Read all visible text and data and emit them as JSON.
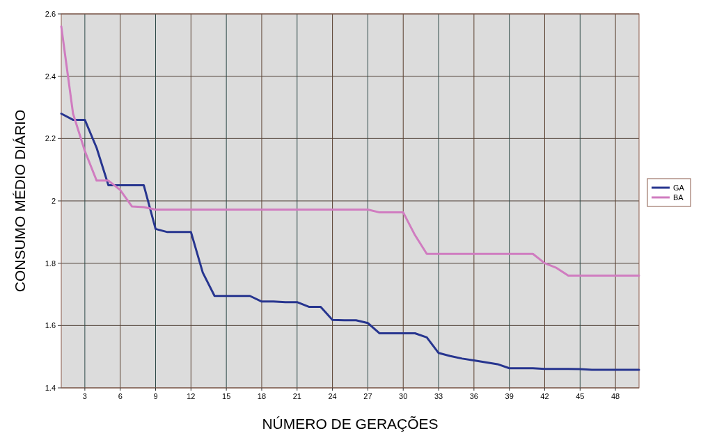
{
  "chart_data": {
    "type": "line",
    "xlabel": "NÚMERO DE GERAÇÕES",
    "ylabel": "CONSUMO MÉDIO DIÁRIO",
    "x": [
      1,
      2,
      3,
      4,
      5,
      6,
      7,
      8,
      9,
      10,
      11,
      12,
      13,
      14,
      15,
      16,
      17,
      18,
      19,
      20,
      21,
      22,
      23,
      24,
      25,
      26,
      27,
      28,
      29,
      30,
      31,
      32,
      33,
      34,
      35,
      36,
      37,
      38,
      39,
      40,
      41,
      42,
      43,
      44,
      45,
      46,
      47,
      48,
      49,
      50
    ],
    "series": [
      {
        "name": "GA",
        "color": "#27358f",
        "values": [
          2.28,
          2.26,
          2.26,
          2.17,
          2.05,
          2.05,
          2.05,
          2.05,
          1.91,
          1.9,
          1.9,
          1.9,
          1.77,
          1.695,
          1.695,
          1.695,
          1.695,
          1.677,
          1.677,
          1.675,
          1.675,
          1.66,
          1.66,
          1.618,
          1.617,
          1.617,
          1.608,
          1.575,
          1.575,
          1.575,
          1.575,
          1.562,
          1.512,
          1.502,
          1.494,
          1.488,
          1.482,
          1.476,
          1.463,
          1.463,
          1.463,
          1.461,
          1.461,
          1.461,
          1.46,
          1.458,
          1.458,
          1.458,
          1.458,
          1.458
        ]
      },
      {
        "name": "BA",
        "color": "#d07cc0",
        "values": [
          2.56,
          2.28,
          2.16,
          2.065,
          2.065,
          2.035,
          1.982,
          1.98,
          1.972,
          1.972,
          1.972,
          1.972,
          1.972,
          1.972,
          1.972,
          1.972,
          1.972,
          1.972,
          1.972,
          1.972,
          1.972,
          1.972,
          1.972,
          1.972,
          1.972,
          1.972,
          1.972,
          1.963,
          1.963,
          1.963,
          1.89,
          1.83,
          1.83,
          1.83,
          1.83,
          1.83,
          1.83,
          1.83,
          1.83,
          1.83,
          1.83,
          1.8,
          1.785,
          1.76,
          1.76,
          1.76,
          1.76,
          1.76,
          1.76,
          1.76
        ]
      }
    ],
    "xlim": [
      1,
      50
    ],
    "xticks": [
      3,
      6,
      9,
      12,
      15,
      18,
      21,
      24,
      27,
      30,
      33,
      36,
      39,
      42,
      45,
      48
    ],
    "ylim": [
      1.4,
      2.6
    ],
    "yticks": [
      1.4,
      1.6,
      1.8,
      2,
      2.2,
      2.4,
      2.6
    ],
    "grid": true,
    "legend": "right",
    "marker": "none",
    "line_style": "solid"
  }
}
